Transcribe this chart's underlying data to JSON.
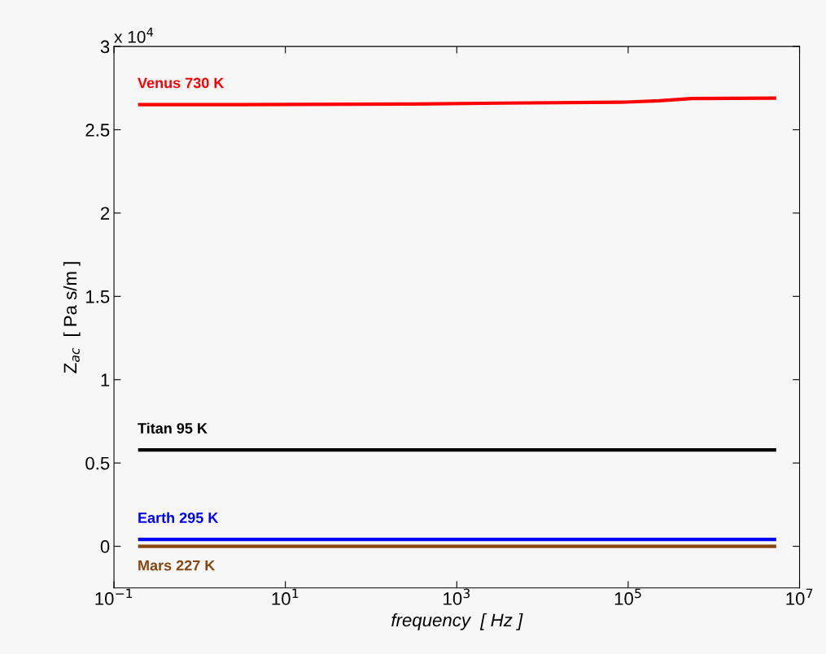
{
  "chart_data": {
    "type": "line",
    "xlabel": "frequency  [ Hz ]",
    "ylabel": "Z$_{ac}$  [ Pa s/m ]",
    "annotations": [
      "x 10$^{4}$"
    ],
    "log": "x",
    "grid": false,
    "legend": false,
    "marker": "none",
    "line_style": "solid",
    "xlim": [
      0.1,
      10000000
    ],
    "ylim": [
      -0.25,
      3
    ],
    "xticks": [
      {
        "value": 0.1,
        "label": "10$^{−1}$"
      },
      {
        "value": 10,
        "label": "10$^{1}$"
      },
      {
        "value": 1000,
        "label": "10$^{3}$"
      },
      {
        "value": 100000,
        "label": "10$^{5}$"
      },
      {
        "value": 10000000,
        "label": "10$^{7}$"
      }
    ],
    "yticks": [
      0,
      0.5,
      1,
      1.5,
      2,
      2.5,
      3
    ],
    "series": [
      {
        "name": "Venus 730 K",
        "color": "#ff0000",
        "x": [
          0.2,
          3.3,
          260,
          3500,
          95000,
          230000,
          550000,
          5100000
        ],
        "values": [
          2.651,
          2.651,
          2.654,
          2.66,
          2.666,
          2.674,
          2.687,
          2.69
        ]
      },
      {
        "name": "Titan 95 K",
        "color": "#000000",
        "x": [
          0.2,
          5100000
        ],
        "values": [
          0.578,
          0.578
        ]
      },
      {
        "name": "Earth 295 K",
        "color": "#0000ff",
        "x": [
          0.2,
          5100000
        ],
        "values": [
          0.041,
          0.041
        ]
      },
      {
        "name": "Mars 227 K",
        "color": "#8b4513",
        "x": [
          0.2,
          5100000
        ],
        "values": [
          0.0,
          0.0
        ]
      }
    ]
  }
}
